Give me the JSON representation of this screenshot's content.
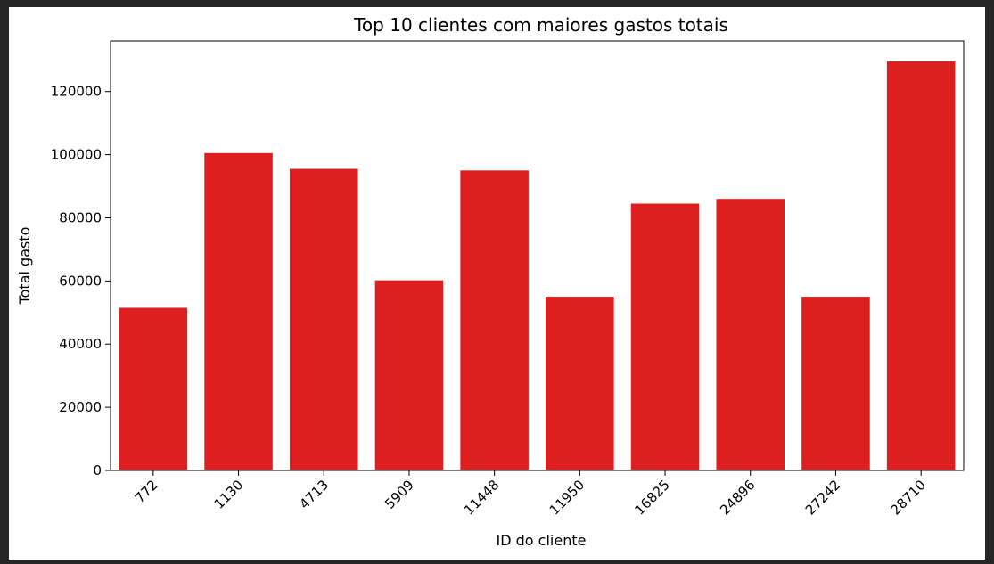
{
  "chart_data": {
    "type": "bar",
    "title": "Top 10 clientes com maiores gastos totais",
    "xlabel": "ID do cliente",
    "ylabel": "Total gasto",
    "categories": [
      "772",
      "1130",
      "4713",
      "5909",
      "11448",
      "11950",
      "16825",
      "24896",
      "27242",
      "28710"
    ],
    "values": [
      51500,
      100500,
      95500,
      60200,
      95000,
      55000,
      84500,
      86000,
      55000,
      129500
    ],
    "ylim": [
      0,
      136000
    ],
    "yticks": [
      0,
      20000,
      40000,
      60000,
      80000,
      100000,
      120000
    ],
    "ytick_labels": [
      "0",
      "20000",
      "40000",
      "60000",
      "80000",
      "100000",
      "120000"
    ],
    "bar_color": "#de1f1f",
    "xtick_rotation": -45,
    "grid": false,
    "legend": "none"
  },
  "page": {
    "background": "#262626",
    "figure_background": "#ffffff"
  }
}
